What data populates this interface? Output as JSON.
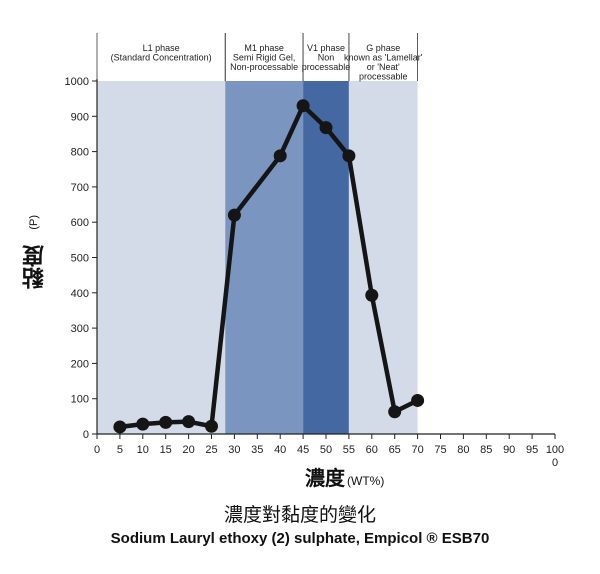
{
  "chart_data": {
    "type": "line",
    "title": "濃度對黏度的變化",
    "subtitle": "Sodium Lauryl ethoxy (2) sulphate, Empicol ® ESB70",
    "xlabel": "濃度",
    "xlabel_unit": "(WT%)",
    "ylabel": "黏度",
    "ylabel_unit": "(P)",
    "xlim": [
      0,
      100
    ],
    "ylim": [
      0,
      1000
    ],
    "x_ticks": [
      "0",
      "5",
      "10",
      "15",
      "20",
      "25",
      "30",
      "35",
      "40",
      "45",
      "50",
      "55",
      "60",
      "65",
      "70",
      "75",
      "80",
      "85",
      "90",
      "95",
      "100"
    ],
    "x_tick_values": [
      0,
      5,
      10,
      15,
      20,
      25,
      30,
      35,
      40,
      45,
      50,
      55,
      60,
      65,
      70,
      75,
      80,
      85,
      90,
      95,
      100
    ],
    "x_tick_sublabel": "0",
    "y_ticks": [
      "0",
      "100",
      "200",
      "300",
      "400",
      "500",
      "600",
      "700",
      "800",
      "900",
      "1000"
    ],
    "y_tick_values": [
      0,
      100,
      200,
      300,
      400,
      500,
      600,
      700,
      800,
      900,
      1000
    ],
    "series": [
      {
        "x": [
          5,
          10,
          15,
          20,
          25,
          30,
          40,
          45,
          50,
          55,
          60,
          65,
          70
        ],
        "y": [
          20,
          28,
          33,
          35,
          22,
          620,
          788,
          930,
          868,
          788,
          393,
          63,
          95
        ],
        "color": "#151515"
      }
    ],
    "phases": [
      {
        "x_start": 0,
        "x_end": 28,
        "color": "#d3dbe8",
        "lines": [
          "L1 phase",
          "(Standard Concentration)"
        ]
      },
      {
        "x_start": 28,
        "x_end": 45,
        "color": "#7a95bf",
        "lines": [
          "M1 phase",
          "Semi Rigid Gel,",
          "Non-processable"
        ]
      },
      {
        "x_start": 45,
        "x_end": 55,
        "color": "#4468a2",
        "lines": [
          "V1 phase",
          "Non",
          "processable"
        ]
      },
      {
        "x_start": 55,
        "x_end": 70,
        "color": "#d3dbe8",
        "lines": [
          "G phase",
          "known as 'Lamellar'",
          "or 'Neat'",
          "processable"
        ]
      }
    ],
    "grid": false,
    "legend": "none"
  }
}
